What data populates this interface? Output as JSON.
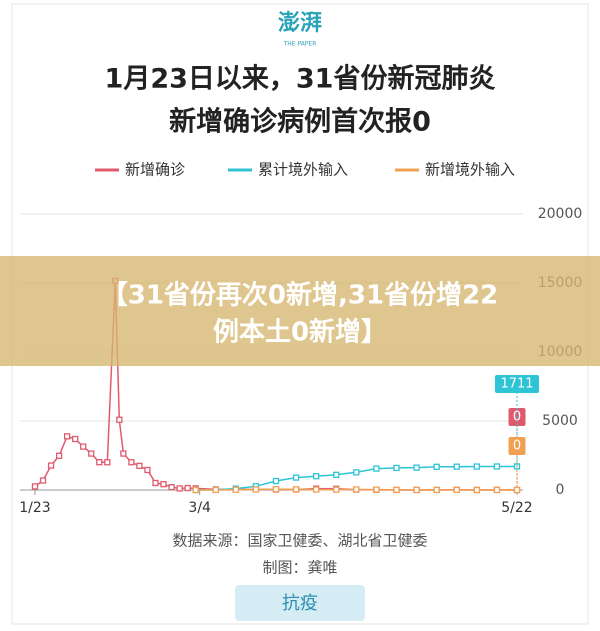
{
  "header": {
    "logo": "澎湃",
    "logo_sub": "THE PAPER"
  },
  "chart_data": {
    "type": "line",
    "title_lines": [
      "1月23日以来，31省份新冠肺炎",
      "新增确诊病例首次报0"
    ],
    "x": [
      0,
      2,
      4,
      6,
      8,
      10,
      12,
      14,
      16,
      18,
      20,
      21,
      22,
      24,
      26,
      28,
      30,
      32,
      34,
      36,
      38,
      40,
      45,
      50,
      55,
      60,
      65,
      70,
      75,
      80,
      85,
      90,
      95,
      100,
      105,
      110,
      115,
      120
    ],
    "xlim": [
      0,
      120
    ],
    "xticks": [
      {
        "value": 0,
        "label": "1/23"
      },
      {
        "value": 41,
        "label": "3/4"
      },
      {
        "value": 120,
        "label": "5/22"
      }
    ],
    "ylim": [
      0,
      20000
    ],
    "yticks": [
      0,
      5000,
      10000,
      15000,
      20000
    ],
    "grid": true,
    "series": [
      {
        "name": "新增确诊",
        "color": "#e05a6e",
        "values": [
          259,
          688,
          1771,
          2478,
          3887,
          3694,
          3143,
          2641,
          2015,
          2009,
          15152,
          5090,
          2641,
          2009,
          1749,
          1451,
          508,
          421,
          202,
          114,
          143,
          119,
          41,
          41,
          46,
          31,
          35,
          99,
          86,
          27,
          11,
          1,
          3,
          2,
          12,
          2,
          7,
          0
        ]
      },
      {
        "name": "累计境外输入",
        "color": "#2ec4d6",
        "values": [
          null,
          null,
          null,
          null,
          null,
          null,
          null,
          null,
          null,
          null,
          null,
          null,
          null,
          null,
          null,
          null,
          null,
          null,
          null,
          null,
          null,
          0,
          15,
          100,
          270,
          650,
          900,
          1000,
          1100,
          1280,
          1550,
          1600,
          1620,
          1680,
          1690,
          1700,
          1705,
          1711
        ]
      },
      {
        "name": "新增境外输入",
        "color": "#f0a050",
        "values": [
          null,
          null,
          null,
          null,
          null,
          null,
          null,
          null,
          null,
          null,
          null,
          null,
          null,
          null,
          null,
          null,
          null,
          null,
          null,
          null,
          null,
          0,
          3,
          20,
          40,
          55,
          50,
          30,
          20,
          40,
          30,
          10,
          5,
          8,
          3,
          1,
          3,
          0
        ]
      }
    ],
    "source": "数据来源：国家卫健委、湖北省卫健委",
    "credit": "制图：龚唯"
  },
  "banner": {
    "lines": [
      "【31省份再次0新增,31省份增22",
      "例本土0新增】"
    ]
  },
  "footer": {
    "tag": "抗疫"
  }
}
